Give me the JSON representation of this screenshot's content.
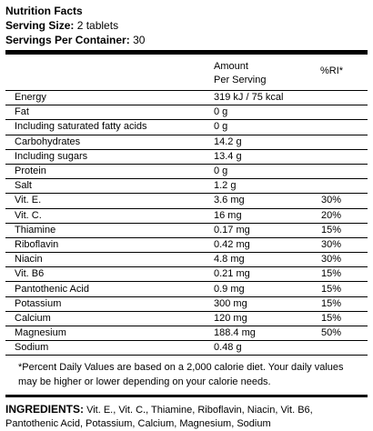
{
  "header": {
    "title": "Nutrition Facts",
    "serving_size_label": "Serving Size:",
    "serving_size_value": "2 tablets",
    "servings_label": "Servings Per Container:",
    "servings_value": "30"
  },
  "columns": {
    "amount_line1": "Amount",
    "amount_line2": "Per Serving",
    "ri": "%RI*"
  },
  "rows": [
    {
      "name": "Energy",
      "amount": "319 kJ / 75 kcal",
      "ri": ""
    },
    {
      "name": "Fat",
      "amount": "0 g",
      "ri": ""
    },
    {
      "name": "Including saturated fatty acids",
      "amount": "0 g",
      "ri": ""
    },
    {
      "name": "Carbohydrates",
      "amount": "14.2 g",
      "ri": ""
    },
    {
      "name": "Including sugars",
      "amount": "13.4 g",
      "ri": ""
    },
    {
      "name": "Protein",
      "amount": "0 g",
      "ri": ""
    },
    {
      "name": "Salt",
      "amount": "1.2 g",
      "ri": ""
    },
    {
      "name": "Vit. E.",
      "amount": "3.6 mg",
      "ri": "30%"
    },
    {
      "name": "Vit. C.",
      "amount": "16 mg",
      "ri": "20%"
    },
    {
      "name": "Thiamine",
      "amount": "0.17 mg",
      "ri": "15%"
    },
    {
      "name": "Riboflavin",
      "amount": "0.42 mg",
      "ri": "30%"
    },
    {
      "name": "Niacin",
      "amount": "4.8 mg",
      "ri": "30%"
    },
    {
      "name": "Vit. B6",
      "amount": "0.21 mg",
      "ri": "15%"
    },
    {
      "name": "Pantothenic Acid",
      "amount": "0.9 mg",
      "ri": "15%"
    },
    {
      "name": "Potassium",
      "amount": "300 mg",
      "ri": "15%"
    },
    {
      "name": "Calcium",
      "amount": "120 mg",
      "ri": "15%"
    },
    {
      "name": "Magnesium",
      "amount": "188.4 mg",
      "ri": "50%"
    },
    {
      "name": "Sodium",
      "amount": "0.48 g",
      "ri": ""
    }
  ],
  "footnote": "*Percent Daily Values are based on a 2,000 calorie diet. Your daily values may be higher or lower depending on your calorie needs.",
  "ingredients": {
    "label": "INGREDIENTS:",
    "text": "Vit. E., Vit. C., Thiamine, Riboflavin, Niacin, Vit. B6, Pantothenic Acid, Potassium, Calcium, Magnesium, Sodium"
  }
}
